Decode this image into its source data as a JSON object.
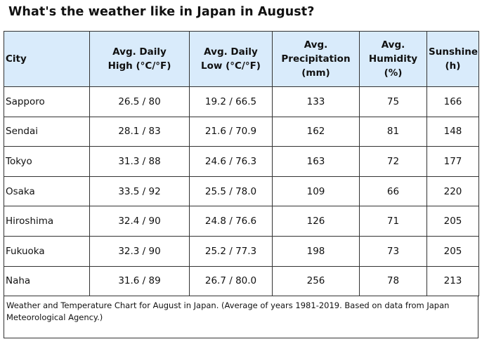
{
  "title": "What's the weather like in Japan in August?",
  "headers": {
    "city": "City",
    "high": [
      "Avg. Daily",
      "High (°C/°F)"
    ],
    "low": [
      "Avg. Daily",
      "Low (°C/°F)"
    ],
    "precip": [
      "Avg. Precipitation",
      "(mm)"
    ],
    "humidity": [
      "Avg.",
      "Humidity",
      "(%)"
    ],
    "sunshine": [
      "Sunshine",
      "(h)"
    ]
  },
  "rows": [
    {
      "city": "Sapporo",
      "high": "26.5 / 80",
      "low": "19.2 / 66.5",
      "precip": "133",
      "humidity": "75",
      "sunshine": "166"
    },
    {
      "city": "Sendai",
      "high": "28.1 / 83",
      "low": "21.6 / 70.9",
      "precip": "162",
      "humidity": "81",
      "sunshine": "148"
    },
    {
      "city": "Tokyo",
      "high": "31.3 / 88",
      "low": "24.6 / 76.3",
      "precip": "163",
      "humidity": "72",
      "sunshine": "177"
    },
    {
      "city": "Osaka",
      "high": "33.5 / 92",
      "low": "25.5 / 78.0",
      "precip": "109",
      "humidity": "66",
      "sunshine": "220"
    },
    {
      "city": "Hiroshima",
      "high": "32.4 / 90",
      "low": "24.8 / 76.6",
      "precip": "126",
      "humidity": "71",
      "sunshine": "205"
    },
    {
      "city": "Fukuoka",
      "high": "32.3 / 90",
      "low": "25.2 / 77.3",
      "precip": "198",
      "humidity": "73",
      "sunshine": "205"
    },
    {
      "city": "Naha",
      "high": "31.6 / 89",
      "low": "26.7 / 80.0",
      "precip": "256",
      "humidity": "78",
      "sunshine": "213"
    }
  ],
  "caption": [
    "Weather and Temperature Chart for August in Japan. (Average of years 1981-2019. Based on data from Japan",
    "Meteorological Agency.)"
  ],
  "colors": {
    "header_bg": "#d9ebfb",
    "border": "#333333"
  }
}
